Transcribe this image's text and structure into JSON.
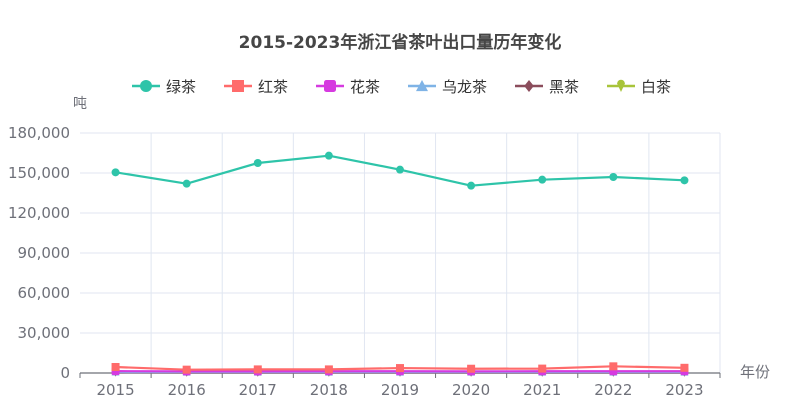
{
  "chart_data": {
    "type": "line",
    "title": "2015-2023年浙江省茶叶出口量历年变化",
    "xlabel": "年份",
    "ylabel": "吨",
    "categories": [
      "2015",
      "2016",
      "2017",
      "2018",
      "2019",
      "2020",
      "2021",
      "2022",
      "2023"
    ],
    "ylim": [
      0,
      180000
    ],
    "yticks": [
      0,
      30000,
      60000,
      90000,
      120000,
      150000,
      180000
    ],
    "ytick_labels": [
      "0",
      "30,000",
      "60,000",
      "90,000",
      "120,000",
      "150,000",
      "180,000"
    ],
    "grid": true,
    "legend_position": "top",
    "series": [
      {
        "name": "绿茶",
        "color": "#2EC4A9",
        "marker": "circle",
        "values": [
          150500,
          142000,
          157500,
          163000,
          152500,
          140500,
          145000,
          147000,
          144500
        ]
      },
      {
        "name": "红茶",
        "color": "#FF6B6B",
        "marker": "rect",
        "values": [
          4500,
          2500,
          2700,
          2700,
          3700,
          3200,
          3300,
          5000,
          3900
        ]
      },
      {
        "name": "花茶",
        "color": "#D63AE0",
        "marker": "roundRect",
        "values": [
          1400,
          1200,
          1200,
          1300,
          1300,
          1200,
          1300,
          1300,
          1300
        ]
      },
      {
        "name": "乌龙茶",
        "color": "#7FB3E6",
        "marker": "triangle",
        "values": [
          700,
          600,
          600,
          600,
          600,
          600,
          600,
          600,
          600
        ]
      },
      {
        "name": "黑茶",
        "color": "#8B4D5C",
        "marker": "diamond",
        "values": [
          400,
          300,
          300,
          300,
          300,
          300,
          300,
          300,
          300
        ]
      },
      {
        "name": "白茶",
        "color": "#A8C43A",
        "marker": "pin",
        "values": [
          1000,
          900,
          900,
          900,
          1000,
          900,
          1000,
          1000,
          1100
        ]
      }
    ]
  }
}
